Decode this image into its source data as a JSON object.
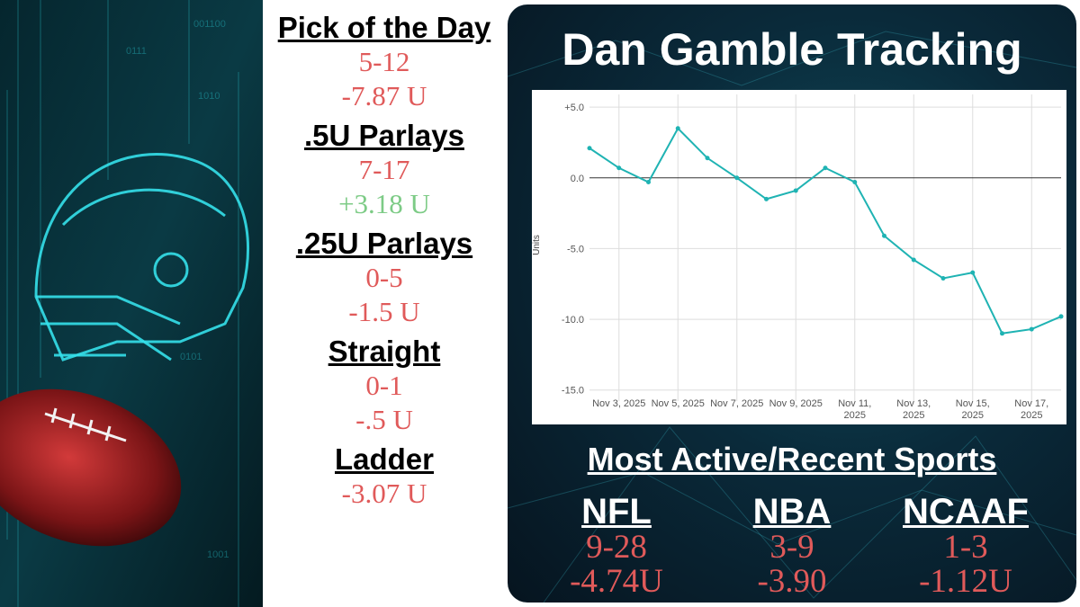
{
  "records": [
    {
      "title": "Pick of the Day",
      "lines": [
        {
          "text": "5-12",
          "color": "#e05a5a"
        },
        {
          "text": "-7.87 U",
          "color": "#e05a5a"
        }
      ]
    },
    {
      "title": ".5U Parlays",
      "lines": [
        {
          "text": "7-17",
          "color": "#e05a5a"
        },
        {
          "text": "+3.18 U",
          "color": "#7dcb86"
        }
      ]
    },
    {
      "title": ".25U Parlays",
      "lines": [
        {
          "text": "0-5",
          "color": "#e05a5a"
        },
        {
          "text": "-1.5 U",
          "color": "#e05a5a"
        }
      ]
    },
    {
      "title": "Straight",
      "lines": [
        {
          "text": "0-1",
          "color": "#e05a5a"
        },
        {
          "text": "-.5 U",
          "color": "#e05a5a"
        }
      ]
    },
    {
      "title": "Ladder",
      "lines": [
        {
          "text": "-3.07 U",
          "color": "#e05a5a"
        }
      ]
    }
  ],
  "header": {
    "title": "Dan Gamble Tracking"
  },
  "chart_data": {
    "type": "line",
    "y_label": "Units",
    "x": [
      "2025-11-02",
      "2025-11-03",
      "2025-11-04",
      "2025-11-05",
      "2025-11-06",
      "2025-11-07",
      "2025-11-08",
      "2025-11-09",
      "2025-11-10",
      "2025-11-11",
      "2025-11-12",
      "2025-11-13",
      "2025-11-14",
      "2025-11-15",
      "2025-11-16",
      "2025-11-17",
      "2025-11-18"
    ],
    "series": [
      {
        "name": "Units",
        "color": "#1fb3b3",
        "values": [
          2.1,
          0.7,
          -0.3,
          3.5,
          1.4,
          0.0,
          -1.5,
          -0.9,
          0.7,
          -0.3,
          -4.1,
          -5.8,
          -7.1,
          -6.7,
          -11.0,
          -10.7,
          -9.8
        ]
      }
    ],
    "xlim": [
      "2025-11-02",
      "2025-11-18"
    ],
    "xticks": [
      {
        "value": "2025-11-03",
        "label": "Nov 3, 2025"
      },
      {
        "value": "2025-11-05",
        "label": "Nov 5, 2025"
      },
      {
        "value": "2025-11-07",
        "label": "Nov 7, 2025"
      },
      {
        "value": "2025-11-09",
        "label": "Nov 9, 2025"
      },
      {
        "value": "2025-11-11",
        "label": "Nov 11, 2025"
      },
      {
        "value": "2025-11-13",
        "label": "Nov 13, 2025"
      },
      {
        "value": "2025-11-15",
        "label": "Nov 15, 2025"
      },
      {
        "value": "2025-11-17",
        "label": "Nov 17, 2025"
      }
    ],
    "ylim": [
      -15.4,
      5.9
    ],
    "yticks": [
      {
        "value": 5,
        "label": "+5.0"
      },
      {
        "value": 0,
        "label": "0.0"
      },
      {
        "value": -5,
        "label": "-5.0"
      },
      {
        "value": -10,
        "label": "-10.0"
      },
      {
        "value": -15,
        "label": "-15.0"
      }
    ],
    "grid": true
  },
  "sports": {
    "title": "Most Active/Recent Sports",
    "color": "#e05a5a",
    "items": [
      {
        "name": "NFL",
        "record": "9-28",
        "units": "-4.74U"
      },
      {
        "name": "NBA",
        "record": "3-9",
        "units": "-3.90"
      },
      {
        "name": "NCAAF",
        "record": "1-3",
        "units": "-1.12U"
      }
    ]
  }
}
